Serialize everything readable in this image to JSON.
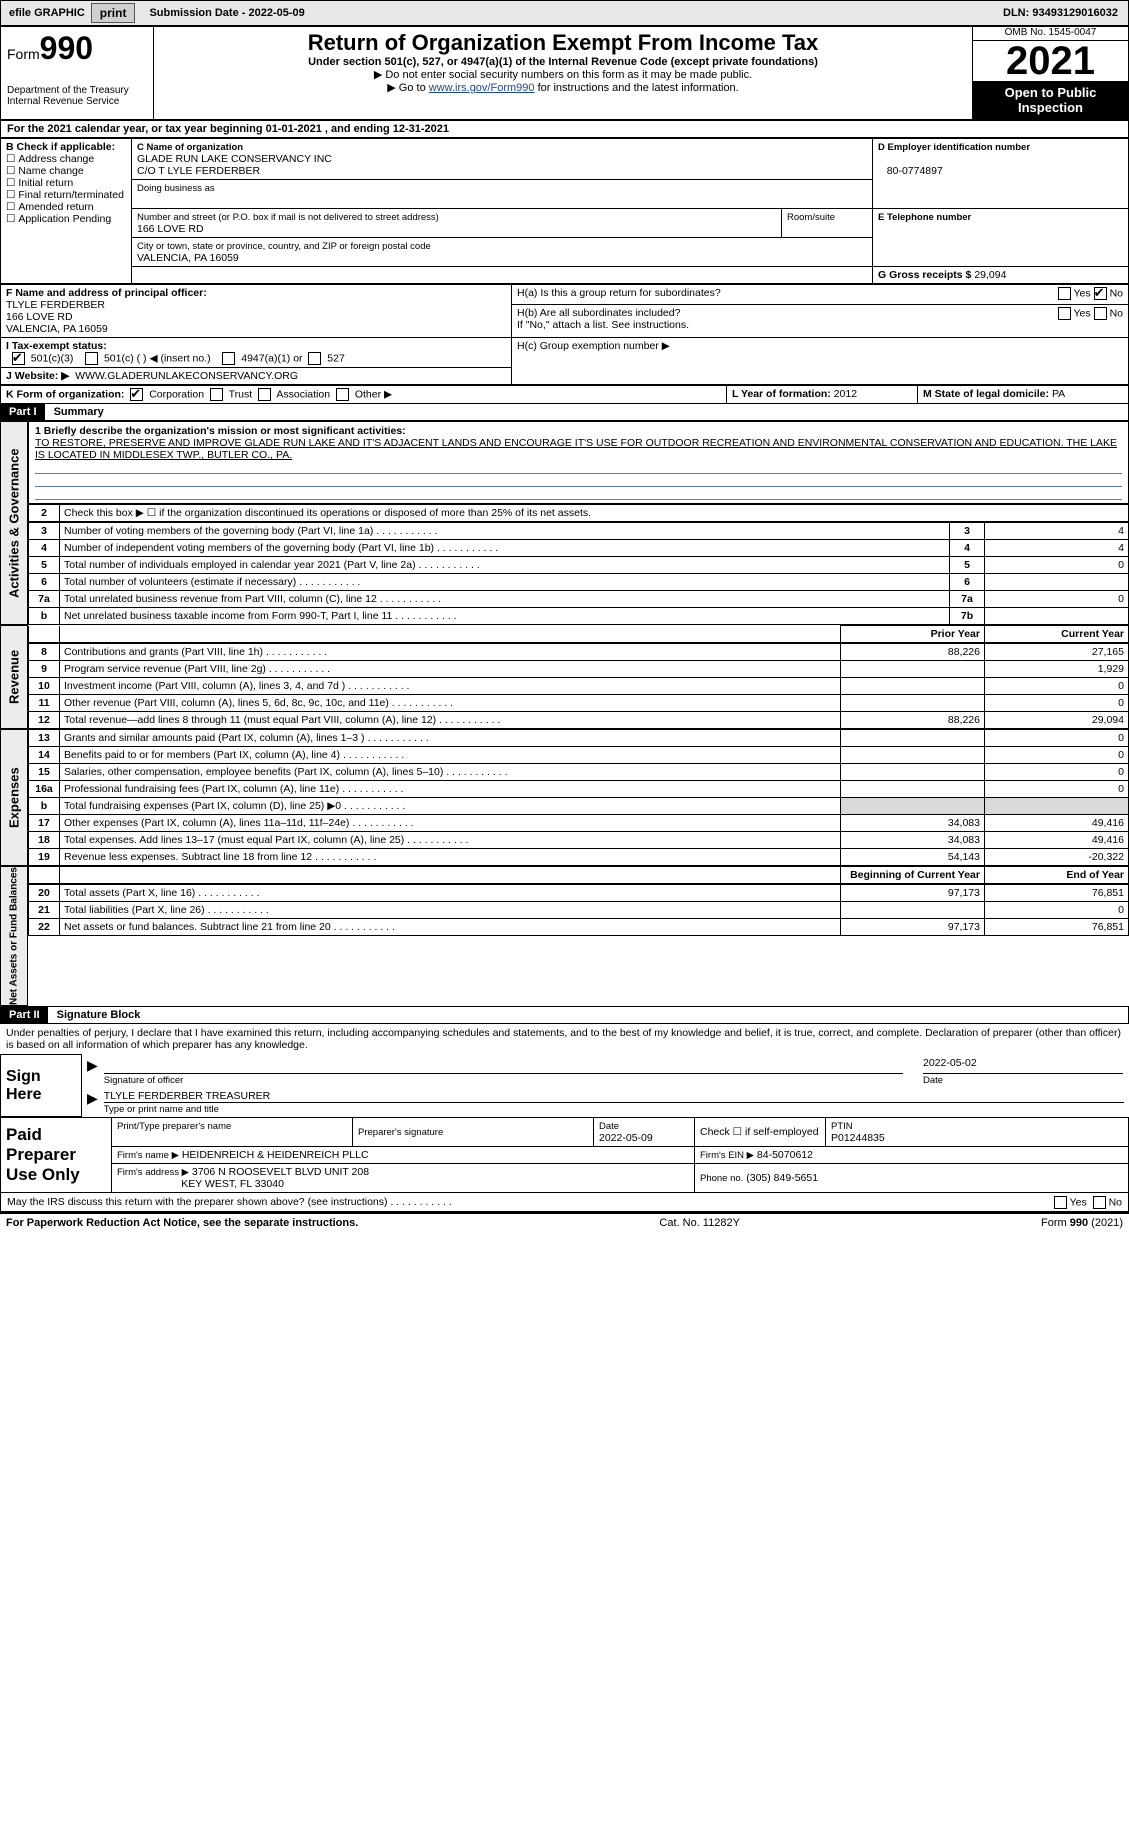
{
  "topbar": {
    "efile": "efile GRAPHIC",
    "print": "print",
    "sub_label": "Submission Date - 2022-05-09",
    "dln": "DLN: 93493129016032"
  },
  "header": {
    "form_word": "Form",
    "form_num": "990",
    "dept": "Department of the Treasury\nInternal Revenue Service",
    "title": "Return of Organization Exempt From Income Tax",
    "subtitle": "Under section 501(c), 527, or 4947(a)(1) of the Internal Revenue Code (except private foundations)",
    "note1": "▶ Do not enter social security numbers on this form as it may be made public.",
    "note2_pre": "▶ Go to ",
    "note2_link": "www.irs.gov/Form990",
    "note2_post": " for instructions and the latest information.",
    "omb": "OMB No. 1545-0047",
    "year": "2021",
    "public": "Open to Public Inspection"
  },
  "sectionA": "For the 2021 calendar year, or tax year beginning 01-01-2021    , and ending 12-31-2021",
  "B": {
    "label": "B Check if applicable:",
    "items": [
      "Address change",
      "Name change",
      "Initial return",
      "Final return/terminated",
      "Amended return",
      "Application Pending"
    ]
  },
  "C": {
    "label": "C Name of organization",
    "name": "GLADE RUN LAKE CONSERVANCY INC",
    "care": "C/O T LYLE FERDERBER",
    "dba_label": "Doing business as",
    "addr_label": "Number and street (or P.O. box if mail is not delivered to street address)",
    "room_label": "Room/suite",
    "addr": "166 LOVE RD",
    "city_label": "City or town, state or province, country, and ZIP or foreign postal code",
    "city": "VALENCIA, PA  16059"
  },
  "D": {
    "label": "D Employer identification number",
    "val": "80-0774897"
  },
  "E": {
    "label": "E Telephone number",
    "val": ""
  },
  "G": {
    "label": "G Gross receipts $",
    "val": "29,094"
  },
  "F": {
    "label": "F  Name and address of principal officer:",
    "name": "TLYLE FERDERBER",
    "addr1": "166 LOVE RD",
    "addr2": "VALENCIA, PA  16059"
  },
  "H": {
    "a": "H(a)  Is this a group return for subordinates?",
    "b": "H(b)  Are all subordinates included?",
    "b_note": "If \"No,\" attach a list. See instructions.",
    "c": "H(c)  Group exemption number ▶",
    "yes": "Yes",
    "no": "No"
  },
  "I": {
    "label": "I   Tax-exempt status:",
    "opts": [
      "501(c)(3)",
      "501(c) (  ) ◀ (insert no.)",
      "4947(a)(1) or",
      "527"
    ]
  },
  "J": {
    "label": "J   Website: ▶",
    "val": "WWW.GLADERUNLAKECONSERVANCY.ORG"
  },
  "K": {
    "label": "K Form of organization:",
    "opts": [
      "Corporation",
      "Trust",
      "Association",
      "Other ▶"
    ]
  },
  "L": {
    "label": "L Year of formation:",
    "val": "2012"
  },
  "M": {
    "label": "M State of legal domicile:",
    "val": "PA"
  },
  "part1": {
    "hdr": "Part I",
    "title": "Summary",
    "mission_label": "1   Briefly describe the organization's mission or most significant activities:",
    "mission": "TO RESTORE, PRESERVE AND IMPROVE GLADE RUN LAKE AND IT'S ADJACENT LANDS AND ENCOURAGE IT'S USE FOR OUTDOOR RECREATION AND ENVIRONMENTAL CONSERVATION AND EDUCATION. THE LAKE IS LOCATED IN MIDDLESEX TWP., BUTLER CO., PA.",
    "line2": "Check this box ▶ ☐  if the organization discontinued its operations or disposed of more than 25% of its net assets.",
    "vert_act": "Activities & Governance",
    "vert_rev": "Revenue",
    "vert_exp": "Expenses",
    "vert_net": "Net Assets or Fund Balances",
    "col_prior": "Prior Year",
    "col_curr": "Current Year",
    "col_beg": "Beginning of Current Year",
    "col_end": "End of Year",
    "rows_gov": [
      {
        "n": "3",
        "t": "Number of voting members of the governing body (Part VI, line 1a)",
        "box": "3",
        "v": "4"
      },
      {
        "n": "4",
        "t": "Number of independent voting members of the governing body (Part VI, line 1b)",
        "box": "4",
        "v": "4"
      },
      {
        "n": "5",
        "t": "Total number of individuals employed in calendar year 2021 (Part V, line 2a)",
        "box": "5",
        "v": "0"
      },
      {
        "n": "6",
        "t": "Total number of volunteers (estimate if necessary)",
        "box": "6",
        "v": ""
      },
      {
        "n": "7a",
        "t": "Total unrelated business revenue from Part VIII, column (C), line 12",
        "box": "7a",
        "v": "0"
      },
      {
        "n": "b",
        "t": "Net unrelated business taxable income from Form 990-T, Part I, line 11",
        "box": "7b",
        "v": ""
      }
    ],
    "rows_rev": [
      {
        "n": "8",
        "t": "Contributions and grants (Part VIII, line 1h)",
        "p": "88,226",
        "c": "27,165"
      },
      {
        "n": "9",
        "t": "Program service revenue (Part VIII, line 2g)",
        "p": "",
        "c": "1,929"
      },
      {
        "n": "10",
        "t": "Investment income (Part VIII, column (A), lines 3, 4, and 7d )",
        "p": "",
        "c": "0"
      },
      {
        "n": "11",
        "t": "Other revenue (Part VIII, column (A), lines 5, 6d, 8c, 9c, 10c, and 11e)",
        "p": "",
        "c": "0"
      },
      {
        "n": "12",
        "t": "Total revenue—add lines 8 through 11 (must equal Part VIII, column (A), line 12)",
        "p": "88,226",
        "c": "29,094"
      }
    ],
    "rows_exp": [
      {
        "n": "13",
        "t": "Grants and similar amounts paid (Part IX, column (A), lines 1–3 )",
        "p": "",
        "c": "0"
      },
      {
        "n": "14",
        "t": "Benefits paid to or for members (Part IX, column (A), line 4)",
        "p": "",
        "c": "0"
      },
      {
        "n": "15",
        "t": "Salaries, other compensation, employee benefits (Part IX, column (A), lines 5–10)",
        "p": "",
        "c": "0"
      },
      {
        "n": "16a",
        "t": "Professional fundraising fees (Part IX, column (A), line 11e)",
        "p": "",
        "c": "0"
      },
      {
        "n": "b",
        "t": "Total fundraising expenses (Part IX, column (D), line 25) ▶0",
        "p": "gray",
        "c": "gray"
      },
      {
        "n": "17",
        "t": "Other expenses (Part IX, column (A), lines 11a–11d, 11f–24e)",
        "p": "34,083",
        "c": "49,416"
      },
      {
        "n": "18",
        "t": "Total expenses. Add lines 13–17 (must equal Part IX, column (A), line 25)",
        "p": "34,083",
        "c": "49,416"
      },
      {
        "n": "19",
        "t": "Revenue less expenses. Subtract line 18 from line 12",
        "p": "54,143",
        "c": "-20,322"
      }
    ],
    "rows_net": [
      {
        "n": "20",
        "t": "Total assets (Part X, line 16)",
        "p": "97,173",
        "c": "76,851"
      },
      {
        "n": "21",
        "t": "Total liabilities (Part X, line 26)",
        "p": "",
        "c": "0"
      },
      {
        "n": "22",
        "t": "Net assets or fund balances. Subtract line 21 from line 20",
        "p": "97,173",
        "c": "76,851"
      }
    ]
  },
  "part2": {
    "hdr": "Part II",
    "title": "Signature Block",
    "decl": "Under penalties of perjury, I declare that I have examined this return, including accompanying schedules and statements, and to the best of my knowledge and belief, it is true, correct, and complete. Declaration of preparer (other than officer) is based on all information of which preparer has any knowledge.",
    "sign_here": "Sign Here",
    "sig_officer": "Signature of officer",
    "sig_date": "2022-05-02",
    "date_lbl": "Date",
    "name_title": "TLYLE FERDERBER  TREASURER",
    "name_lbl": "Type or print name and title",
    "paid": "Paid Preparer Use Only",
    "prep_name_lbl": "Print/Type preparer's name",
    "prep_sig_lbl": "Preparer's signature",
    "prep_date_lbl": "Date",
    "prep_date": "2022-05-09",
    "check_lbl": "Check ☐ if self-employed",
    "ptin_lbl": "PTIN",
    "ptin": "P01244835",
    "firm_name_lbl": "Firm's name    ▶",
    "firm_name": "HEIDENREICH & HEIDENREICH PLLC",
    "firm_ein_lbl": "Firm's EIN ▶",
    "firm_ein": "84-5070612",
    "firm_addr_lbl": "Firm's address ▶",
    "firm_addr": "3706 N ROOSEVELT BLVD UNIT 208",
    "firm_city": "KEY WEST, FL  33040",
    "phone_lbl": "Phone no.",
    "phone": "(305) 849-5651",
    "may_irs": "May the IRS discuss this return with the preparer shown above? (see instructions)",
    "yes": "Yes",
    "no": "No"
  },
  "footer": {
    "notice": "For Paperwork Reduction Act Notice, see the separate instructions.",
    "cat": "Cat. No. 11282Y",
    "form": "Form 990 (2021)"
  }
}
